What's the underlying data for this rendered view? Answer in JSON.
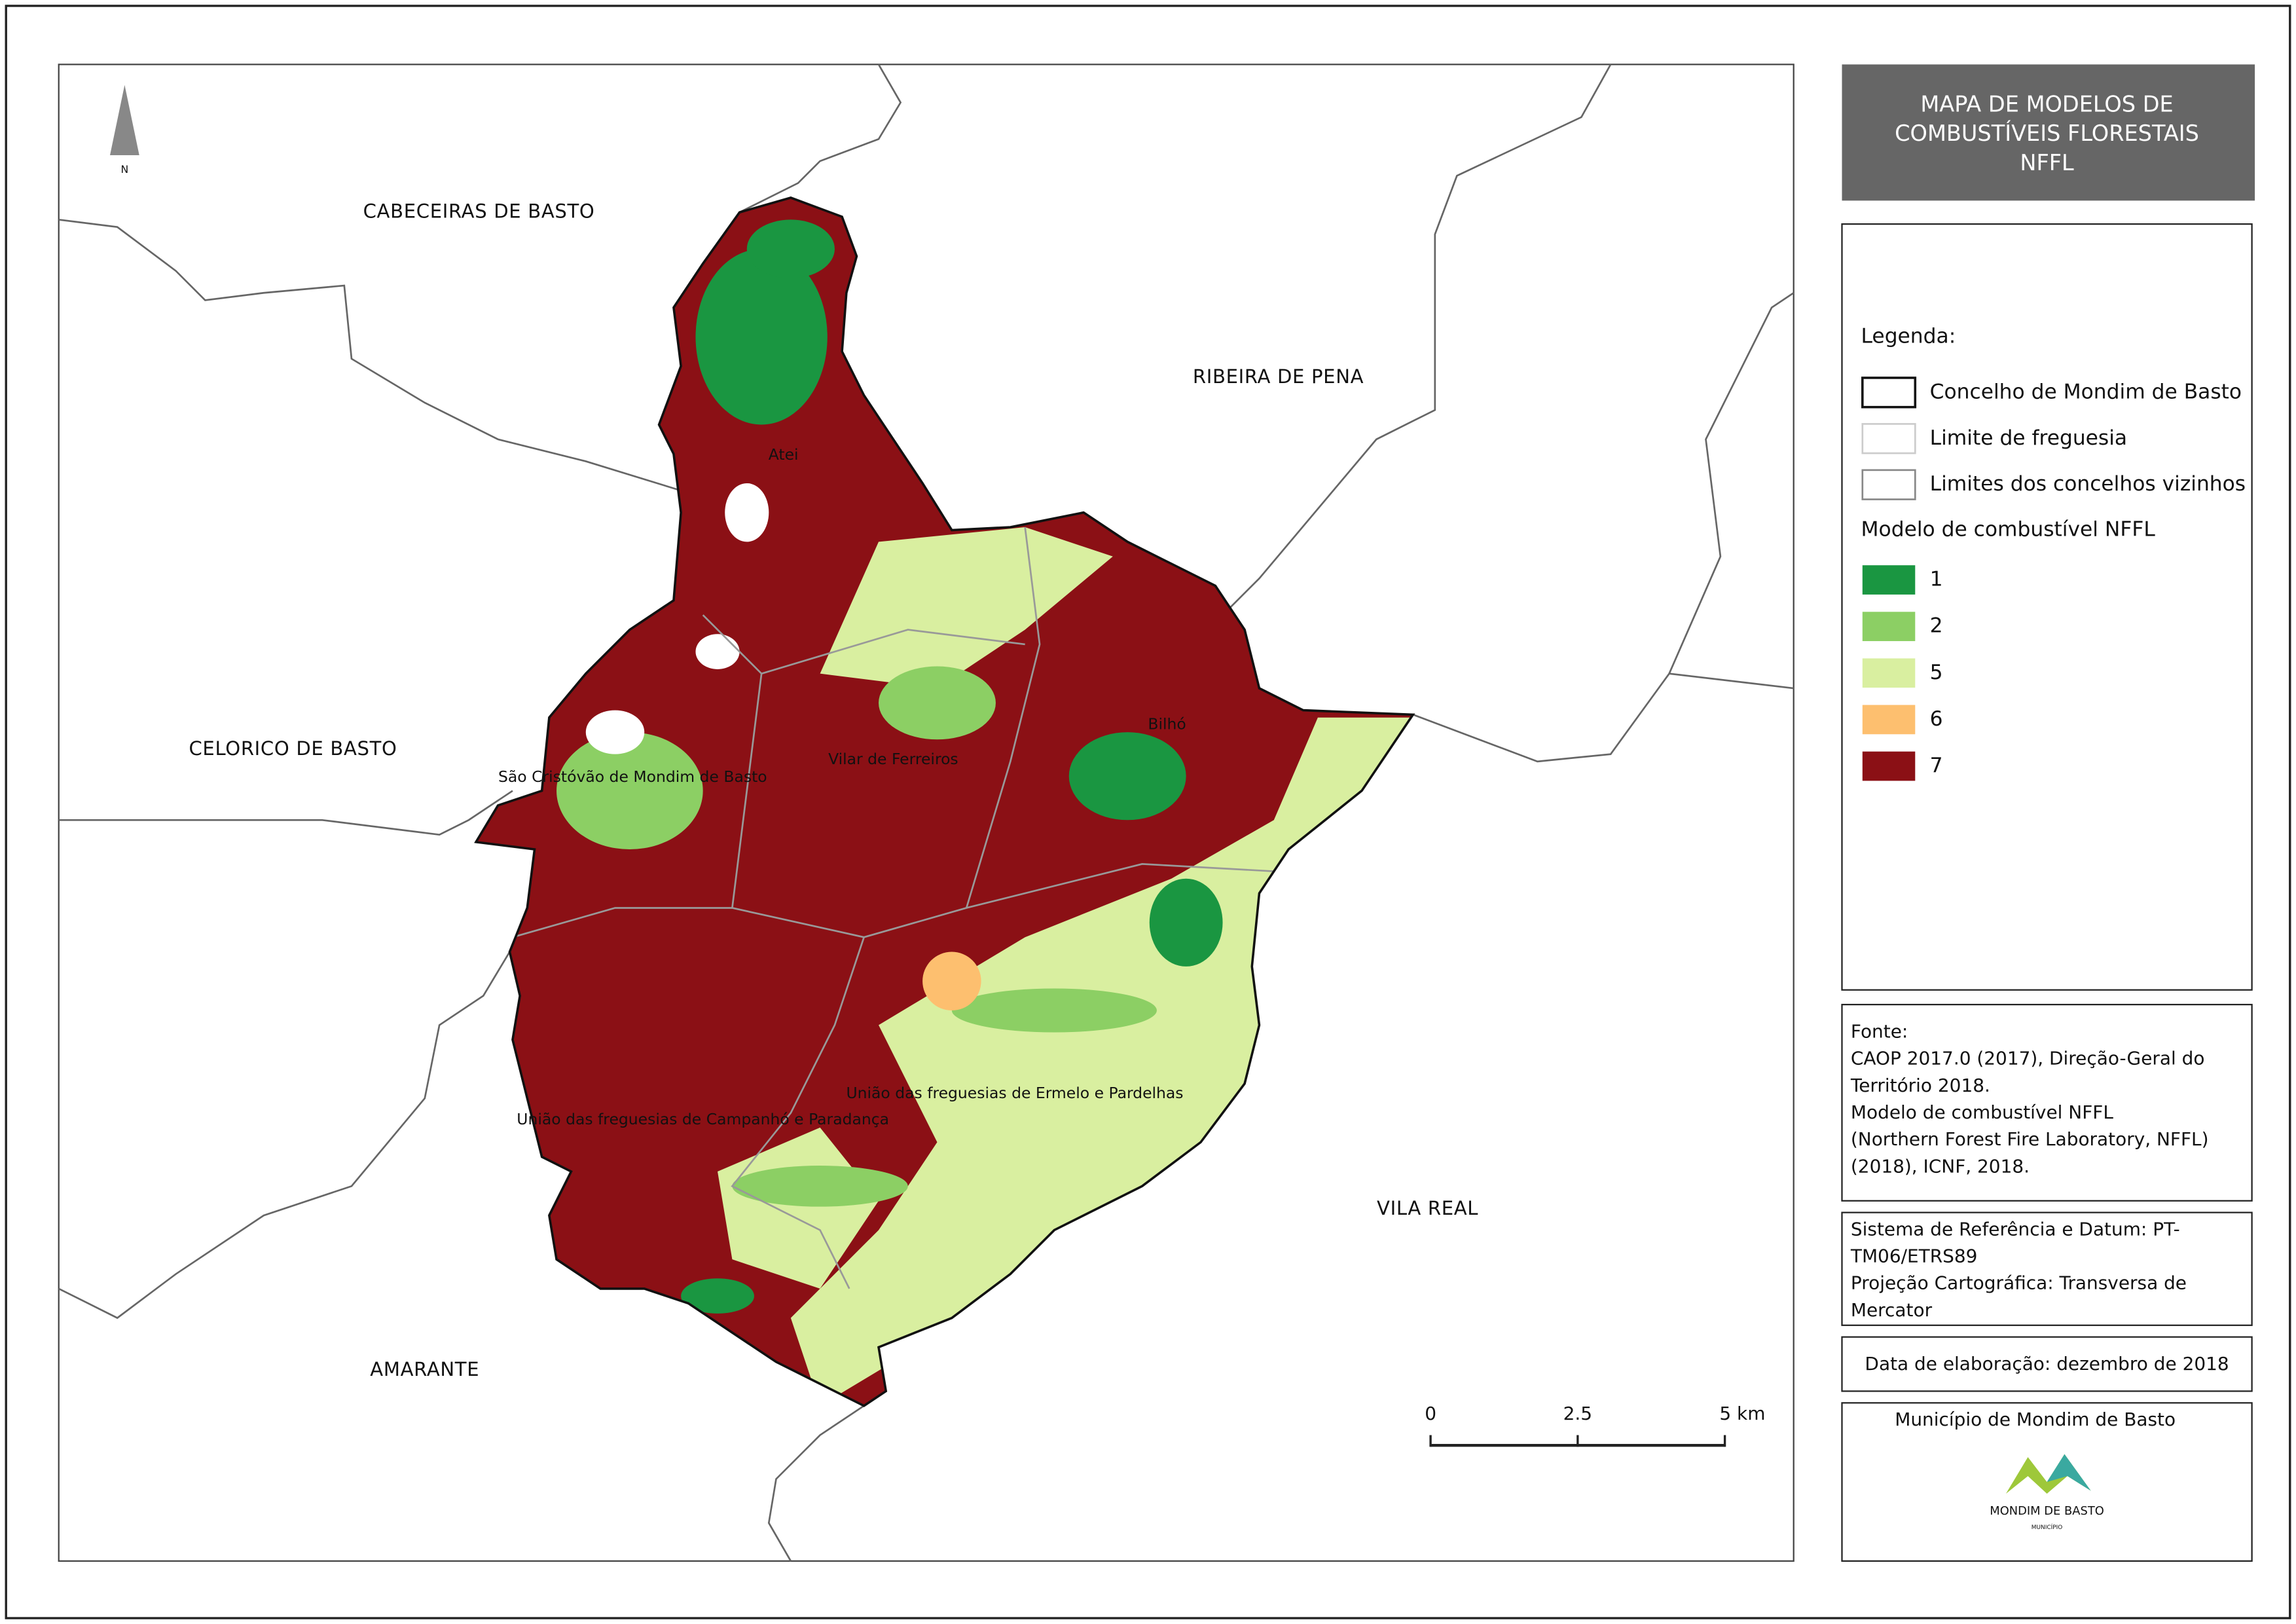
{
  "title": [
    "MAPA DE MODELOS DE",
    "COMBUSTÍVEIS FLORESTAIS",
    "NFFL"
  ],
  "north": "N",
  "neighbors": [
    "CABECEIRAS DE BASTO",
    "RIBEIRA DE PENA",
    "CELORICO DE BASTO",
    "VILA REAL",
    "AMARANTE"
  ],
  "parishes": [
    "Atei",
    "Bilhó",
    "Vilar de Ferreiros",
    "São Cristóvão de Mondim de Basto",
    "União das freguesias de Ermelo e Pardelhas",
    "União das freguesias de Campanhó e Paradança"
  ],
  "legend": {
    "heading": "Legenda:",
    "boundaries": [
      "Concelho de Mondim de Basto",
      "Limite de freguesia",
      "Limites dos concelhos vizinhos"
    ],
    "fuel_heading": "Modelo de combustível NFFL",
    "fuel_models": [
      {
        "label": "1",
        "color": "#1a9641"
      },
      {
        "label": "2",
        "color": "#8ccf64"
      },
      {
        "label": "5",
        "color": "#d9efa0"
      },
      {
        "label": "6",
        "color": "#fdbf6f"
      },
      {
        "label": "7",
        "color": "#8b1015"
      }
    ]
  },
  "scale_bar": {
    "ticks": [
      0,
      2.5,
      {
        "value": 5,
        "label": "5 km"
      }
    ]
  },
  "source": [
    "Fonte:",
    "CAOP 2017.0 (2017), Direção-Geral do",
    "Território 2018.",
    "Modelo de combustível NFFL",
    "(Northern Forest Fire Laboratory, NFFL)",
    "(2018), ICNF, 2018."
  ],
  "reference_system": [
    "Sistema de Referência e Datum: PT-",
    "TM06/ETRS89",
    "Projeção Cartográfica: Transversa de",
    "Mercator"
  ],
  "date": "Data de elaboração: dezembro de 2018",
  "credit": "Município de Mondim de Basto",
  "logo": {
    "name": "MONDIM DE BASTO",
    "subtitle": "MUNICÍPIO"
  }
}
